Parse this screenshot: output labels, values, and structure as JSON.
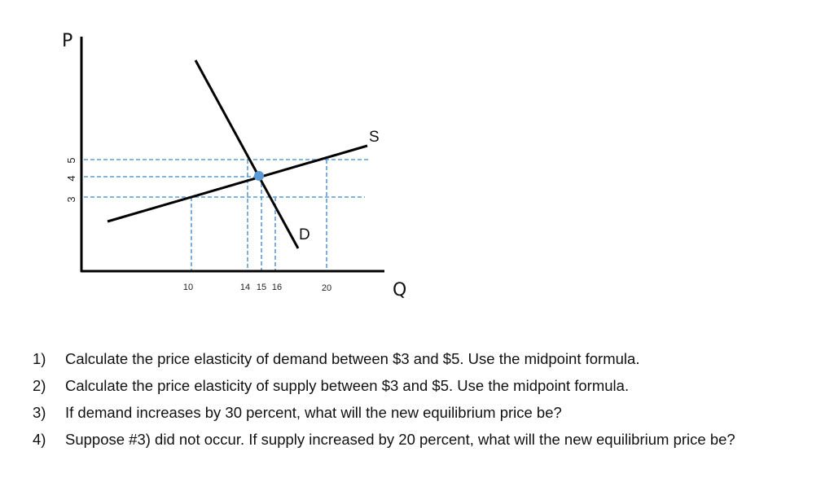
{
  "diagram": {
    "price_axis_label": "P",
    "quantity_axis_label": "Q",
    "supply_label": "S",
    "demand_label": "D",
    "price_ticks": [
      "5",
      "4",
      "3"
    ],
    "quantity_ticks": [
      "10",
      "14",
      "15",
      "16",
      "20"
    ],
    "colors": {
      "guide": "#5b9bd5",
      "point": "#5b9bd5",
      "lines": "#000000"
    }
  },
  "questions": [
    {
      "number": "1)",
      "text": "Calculate the price elasticity of demand between $3 and $5.  Use the midpoint formula."
    },
    {
      "number": "2)",
      "text": "Calculate the price elasticity of supply between $3 and $5.  Use the midpoint formula."
    },
    {
      "number": "3)",
      "text": "If demand increases by 30 percent, what will the new equilibrium price be?"
    },
    {
      "number": "4)",
      "text": "Suppose #3) did not occur. If supply increased by 20 percent, what will the new equilibrium price be?"
    }
  ]
}
